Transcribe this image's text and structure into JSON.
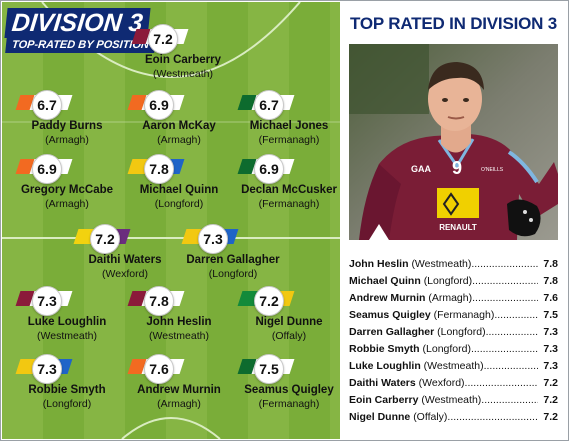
{
  "header": {
    "title": "DIVISION 3",
    "subtitle": "TOP-RATED BY POSITION"
  },
  "colors": {
    "navy": "#0f2a73",
    "westmeath": "#8b1a3a",
    "armagh": "#f26a21",
    "fermanagh": "#0d6b2e",
    "longford_yellow": "#f2c811",
    "longford_blue": "#1f64c8",
    "wexford_yellow": "#f2d20f",
    "wexford_purple": "#6b2d7e",
    "offaly_green": "#138a3a",
    "offaly_yellow": "#f2c811"
  },
  "players": [
    {
      "name": "Eoin Carberry",
      "county": "(Westmeath)",
      "rating": "7.2",
      "flag": "westmeath"
    },
    {
      "name": "Paddy Burns",
      "county": "(Armagh)",
      "rating": "6.7",
      "flag": "armagh"
    },
    {
      "name": "Aaron McKay",
      "county": "(Armagh)",
      "rating": "6.9",
      "flag": "armagh"
    },
    {
      "name": "Michael Jones",
      "county": "(Fermanagh)",
      "rating": "6.7",
      "flag": "fermanagh"
    },
    {
      "name": "Gregory McCabe",
      "county": "(Armagh)",
      "rating": "6.9",
      "flag": "armagh"
    },
    {
      "name": "Michael Quinn",
      "county": "(Longford)",
      "rating": "7.8",
      "flag": "longford"
    },
    {
      "name": "Declan McCusker",
      "county": "(Fermanagh)",
      "rating": "6.9",
      "flag": "fermanagh"
    },
    {
      "name": "Daithi Waters",
      "county": "(Wexford)",
      "rating": "7.2",
      "flag": "wexford"
    },
    {
      "name": "Darren Gallagher",
      "county": "(Longford)",
      "rating": "7.3",
      "flag": "longford"
    },
    {
      "name": "Luke Loughlin",
      "county": "(Westmeath)",
      "rating": "7.3",
      "flag": "westmeath"
    },
    {
      "name": "John Heslin",
      "county": "(Westmeath)",
      "rating": "7.8",
      "flag": "westmeath"
    },
    {
      "name": "Nigel Dunne",
      "county": "(Offaly)",
      "rating": "7.2",
      "flag": "offaly"
    },
    {
      "name": "Robbie Smyth",
      "county": "(Longford)",
      "rating": "7.3",
      "flag": "longford"
    },
    {
      "name": "Andrew Murnin",
      "county": "(Armagh)",
      "rating": "7.6",
      "flag": "armagh"
    },
    {
      "name": "Seamus Quigley",
      "county": "(Fermanagh)",
      "rating": "7.5",
      "flag": "fermanagh"
    }
  ],
  "panel": {
    "title": "TOP RATED IN DIVISION 3",
    "shirt_sponsor": "RENAULT",
    "shirt_maker": "O'NEILLS",
    "shirt_number": "9",
    "shirt_badge": "GAA"
  },
  "top_list": [
    {
      "name": "John Heslin",
      "county": "(Westmeath)",
      "rating": "7.8"
    },
    {
      "name": "Michael Quinn",
      "county": "(Longford)",
      "rating": "7.8"
    },
    {
      "name": "Andrew Murnin",
      "county": "(Armagh)",
      "rating": "7.6"
    },
    {
      "name": "Seamus Quigley",
      "county": "(Fermanagh)",
      "rating": "7.5"
    },
    {
      "name": "Darren Gallagher",
      "county": "(Longford)",
      "rating": "7.3"
    },
    {
      "name": "Robbie Smyth",
      "county": "(Longford)",
      "rating": "7.3"
    },
    {
      "name": "Luke Loughlin",
      "county": "(Westmeath)",
      "rating": "7.3"
    },
    {
      "name": "Daithi Waters",
      "county": "(Wexford)",
      "rating": "7.2"
    },
    {
      "name": "Eoin Carberry",
      "county": "(Westmeath)",
      "rating": "7.2"
    },
    {
      "name": "Nigel Dunne",
      "county": "(Offaly)",
      "rating": "7.2"
    }
  ]
}
